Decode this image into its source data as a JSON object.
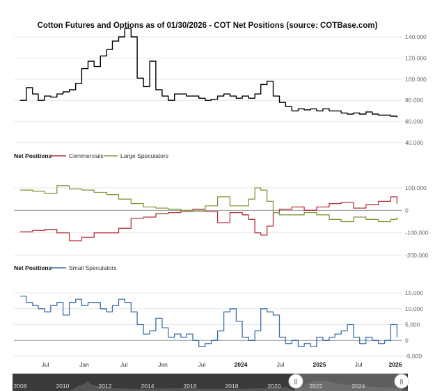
{
  "title": "Cotton Futures and Options as of 01/30/2026 - COT Net Positions (source: COTBase.com)",
  "chart_data": [
    {
      "type": "line",
      "panel": "price",
      "ylim": [
        40000,
        150000
      ],
      "y_ticks": [
        {
          "v": 140000,
          "label": "140.000"
        },
        {
          "v": 120000,
          "label": "120.000"
        },
        {
          "v": 100000,
          "label": "100.000"
        },
        {
          "v": 80000,
          "label": "80.000"
        },
        {
          "v": 60000,
          "label": "60.000"
        },
        {
          "v": 40000,
          "label": "40.000"
        }
      ],
      "series": [
        {
          "color": "#000000",
          "x": [
            "2020-12",
            "2021-01",
            "2021-02",
            "2021-03",
            "2021-04",
            "2021-05",
            "2021-06",
            "2021-07",
            "2021-08",
            "2021-09",
            "2021-10",
            "2021-11",
            "2021-12",
            "2022-01",
            "2022-02",
            "2022-03",
            "2022-04",
            "2022-05",
            "2022-06",
            "2022-07",
            "2022-08",
            "2022-09",
            "2022-10",
            "2022-11",
            "2022-12",
            "2023-01",
            "2023-02",
            "2023-03",
            "2023-04",
            "2023-05",
            "2023-06",
            "2023-07",
            "2023-08",
            "2023-09",
            "2023-10",
            "2023-11",
            "2023-12",
            "2024-01",
            "2024-02",
            "2024-03",
            "2024-04",
            "2024-05",
            "2024-06",
            "2024-07",
            "2024-08",
            "2024-09",
            "2024-10",
            "2024-11",
            "2024-12",
            "2025-01",
            "2025-02",
            "2025-03",
            "2025-04",
            "2025-05",
            "2025-06",
            "2025-07",
            "2025-08",
            "2025-09",
            "2025-10",
            "2025-11",
            "2025-12",
            "2026-01"
          ],
          "values": [
            80000,
            92000,
            86000,
            80000,
            84000,
            83000,
            86000,
            88000,
            90000,
            96000,
            110000,
            117000,
            112000,
            122000,
            128000,
            136000,
            140000,
            148000,
            140000,
            101000,
            93000,
            117000,
            90000,
            84000,
            80000,
            86000,
            86000,
            84000,
            84000,
            82000,
            80000,
            81000,
            84000,
            86000,
            84000,
            82000,
            84000,
            82000,
            86000,
            95000,
            98000,
            84000,
            78000,
            74000,
            70000,
            72000,
            71000,
            72000,
            70000,
            72000,
            70000,
            70000,
            68000,
            67000,
            68000,
            67000,
            69000,
            67000,
            66000,
            66000,
            65000,
            64000
          ]
        }
      ]
    },
    {
      "type": "line",
      "panel": "commercials-large",
      "legend_title": "Net Positions",
      "ylim": [
        -200000,
        120000
      ],
      "y_ticks": [
        {
          "v": 100000,
          "label": "100,000"
        },
        {
          "v": 0,
          "label": "0"
        },
        {
          "v": -100000,
          "label": "-100,000"
        },
        {
          "v": -200000,
          "label": "-200,000"
        }
      ],
      "series": [
        {
          "name": "Commercials",
          "color": "#b5303a",
          "x": [
            "2020-12",
            "2021-02",
            "2021-04",
            "2021-06",
            "2021-08",
            "2021-10",
            "2021-12",
            "2022-02",
            "2022-04",
            "2022-06",
            "2022-08",
            "2022-10",
            "2022-12",
            "2023-02",
            "2023-04",
            "2023-06",
            "2023-08",
            "2023-10",
            "2023-12",
            "2024-01",
            "2024-02",
            "2024-03",
            "2024-04",
            "2024-05",
            "2024-06",
            "2024-08",
            "2024-10",
            "2024-12",
            "2025-02",
            "2025-04",
            "2025-06",
            "2025-08",
            "2025-10",
            "2025-12",
            "2026-01"
          ],
          "values": [
            -95000,
            -90000,
            -85000,
            -100000,
            -135000,
            -120000,
            -100000,
            -100000,
            -80000,
            -35000,
            -30000,
            -15000,
            -10000,
            -5000,
            5000,
            -5000,
            -55000,
            -10000,
            -20000,
            -40000,
            -100000,
            -110000,
            -70000,
            -10000,
            5000,
            15000,
            0,
            15000,
            30000,
            35000,
            10000,
            25000,
            40000,
            60000,
            30000
          ]
        },
        {
          "name": "Large Speculators",
          "color": "#7f9a3c",
          "x": [
            "2020-12",
            "2021-02",
            "2021-04",
            "2021-06",
            "2021-08",
            "2021-10",
            "2021-12",
            "2022-02",
            "2022-04",
            "2022-06",
            "2022-08",
            "2022-10",
            "2022-12",
            "2023-02",
            "2023-04",
            "2023-06",
            "2023-08",
            "2023-10",
            "2023-12",
            "2024-01",
            "2024-02",
            "2024-03",
            "2024-04",
            "2024-05",
            "2024-06",
            "2024-08",
            "2024-10",
            "2024-12",
            "2025-02",
            "2025-04",
            "2025-06",
            "2025-08",
            "2025-10",
            "2025-12",
            "2026-01"
          ],
          "values": [
            90000,
            85000,
            75000,
            110000,
            95000,
            90000,
            80000,
            70000,
            50000,
            30000,
            15000,
            10000,
            5000,
            0,
            -5000,
            20000,
            60000,
            20000,
            20000,
            50000,
            100000,
            90000,
            40000,
            -10000,
            -20000,
            -20000,
            -10000,
            -20000,
            -40000,
            -50000,
            -30000,
            -40000,
            -50000,
            -40000,
            -30000
          ]
        }
      ]
    },
    {
      "type": "line",
      "panel": "small-speculators",
      "legend_title": "Net Positions",
      "ylim": [
        -5000,
        16000
      ],
      "y_ticks": [
        {
          "v": 15000,
          "label": "15,000"
        },
        {
          "v": 10000,
          "label": "10,000"
        },
        {
          "v": 5000,
          "label": "5,000"
        },
        {
          "v": 0,
          "label": "0"
        },
        {
          "v": -5000,
          "label": "-5,000"
        }
      ],
      "series": [
        {
          "name": "Small Speculators",
          "color": "#3d6fa6",
          "x": [
            "2020-12",
            "2021-01",
            "2021-02",
            "2021-03",
            "2021-04",
            "2021-05",
            "2021-06",
            "2021-07",
            "2021-08",
            "2021-09",
            "2021-10",
            "2021-11",
            "2021-12",
            "2022-01",
            "2022-02",
            "2022-03",
            "2022-04",
            "2022-05",
            "2022-06",
            "2022-07",
            "2022-08",
            "2022-09",
            "2022-10",
            "2022-11",
            "2022-12",
            "2023-01",
            "2023-02",
            "2023-03",
            "2023-04",
            "2023-05",
            "2023-06",
            "2023-07",
            "2023-08",
            "2023-09",
            "2023-10",
            "2023-11",
            "2023-12",
            "2024-01",
            "2024-02",
            "2024-03",
            "2024-04",
            "2024-05",
            "2024-06",
            "2024-07",
            "2024-08",
            "2024-09",
            "2024-10",
            "2024-11",
            "2024-12",
            "2025-01",
            "2025-02",
            "2025-03",
            "2025-04",
            "2025-05",
            "2025-06",
            "2025-07",
            "2025-08",
            "2025-09",
            "2025-10",
            "2025-11",
            "2025-12",
            "2026-01"
          ],
          "values": [
            14000,
            12000,
            11000,
            10000,
            9000,
            11000,
            12000,
            8000,
            12000,
            13000,
            11000,
            12000,
            12000,
            10000,
            9000,
            11000,
            13000,
            12000,
            9000,
            5000,
            2000,
            3000,
            7000,
            4000,
            1000,
            2000,
            1000,
            2000,
            0,
            -2000,
            -1000,
            0,
            3000,
            9000,
            10000,
            6000,
            1000,
            0,
            3000,
            10000,
            9000,
            8000,
            1000,
            -1000,
            0,
            -2000,
            -1000,
            -2000,
            1000,
            0,
            1000,
            2000,
            3000,
            5000,
            1000,
            -1000,
            1000,
            0,
            -1000,
            0,
            5000,
            1000
          ]
        }
      ]
    }
  ],
  "x_axis_labels": [
    {
      "label": "Jul",
      "bold": false
    },
    {
      "label": "Jan",
      "bold": false
    },
    {
      "label": "Jul",
      "bold": false
    },
    {
      "label": "Jan",
      "bold": false
    },
    {
      "label": "Jul",
      "bold": false
    },
    {
      "label": "2024",
      "bold": true
    },
    {
      "label": "Jul",
      "bold": false
    },
    {
      "label": "2025",
      "bold": true
    },
    {
      "label": "Jul",
      "bold": false
    },
    {
      "label": "2026",
      "bold": true
    }
  ],
  "navigator": {
    "labels": [
      "2008",
      "2010",
      "2012",
      "2014",
      "2016",
      "2018",
      "2020",
      "2022",
      "2024"
    ],
    "handle_left_glyph": "||",
    "handle_right_glyph": "||"
  }
}
